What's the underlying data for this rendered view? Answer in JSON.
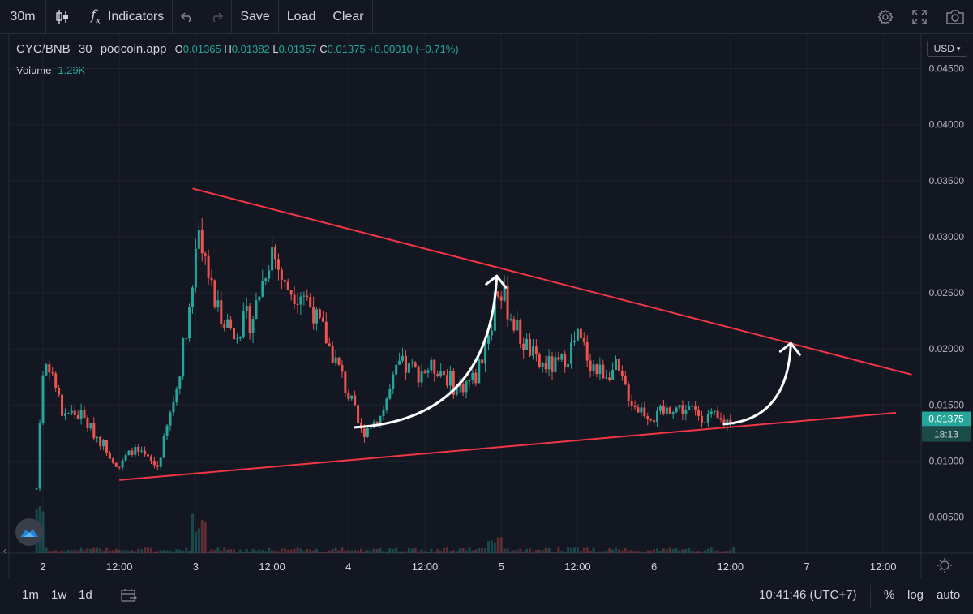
{
  "toolbar": {
    "interval": "30m",
    "indicators_label": "Indicators",
    "save_label": "Save",
    "load_label": "Load",
    "clear_label": "Clear"
  },
  "legend": {
    "symbol": "CYC/BNB",
    "interval": "30",
    "source": "poocoin.app",
    "open_key": "O",
    "open": "0.01365",
    "high_key": "H",
    "high": "0.01382",
    "low_key": "L",
    "low": "0.01357",
    "close_key": "C",
    "close": "0.01375",
    "change": "+0.00010 (+0.71%)",
    "volume_label": "Volume",
    "volume_value": "1.29K"
  },
  "currency": "USD",
  "price_labels": {
    "last_price": "0.01375",
    "countdown": "18:13"
  },
  "bottombar": {
    "ranges": [
      "1m",
      "1w",
      "1d"
    ],
    "time": "10:41:46 (UTC+7)",
    "percent_label": "%",
    "log_label": "log",
    "auto_label": "auto"
  },
  "colors": {
    "background": "#131722",
    "up": "#26a69a",
    "down": "#ef5350",
    "trendline": "#f23645",
    "annotation": "#ffffff",
    "grid": "#1e222d"
  },
  "chart_data": {
    "type": "candlestick",
    "title": "",
    "xlabel": "",
    "ylabel": "",
    "ylim": [
      0.002,
      0.0465
    ],
    "y_ticks": [
      "0.04500",
      "0.04000",
      "0.03500",
      "0.03000",
      "0.02500",
      "0.02000",
      "0.01500",
      "0.01000",
      "0.00500"
    ],
    "y_tick_values": [
      0.045,
      0.04,
      0.035,
      0.03,
      0.025,
      0.02,
      0.015,
      0.01,
      0.005
    ],
    "x_ticks": [
      "2",
      "12:00",
      "3",
      "12:00",
      "4",
      "12:00",
      "5",
      "12:00",
      "6",
      "12:00",
      "7",
      "12:00"
    ],
    "x_tick_hours": [
      0,
      12,
      24,
      36,
      48,
      60,
      72,
      84,
      96,
      108,
      120,
      132
    ],
    "grid": true,
    "price_anchors": [
      {
        "h": -1.0,
        "v": 0.0075
      },
      {
        "h": 0,
        "v": 0.0185
      },
      {
        "h": 1,
        "v": 0.0188
      },
      {
        "h": 3,
        "v": 0.0145
      },
      {
        "h": 6,
        "v": 0.014
      },
      {
        "h": 9,
        "v": 0.0118
      },
      {
        "h": 12,
        "v": 0.0095
      },
      {
        "h": 14,
        "v": 0.011
      },
      {
        "h": 18,
        "v": 0.0095
      },
      {
        "h": 21,
        "v": 0.0165
      },
      {
        "h": 23.5,
        "v": 0.0255
      },
      {
        "h": 24.6,
        "v": 0.0305
      },
      {
        "h": 27,
        "v": 0.024
      },
      {
        "h": 30,
        "v": 0.0215
      },
      {
        "h": 33,
        "v": 0.023
      },
      {
        "h": 36,
        "v": 0.029
      },
      {
        "h": 38,
        "v": 0.0255
      },
      {
        "h": 41,
        "v": 0.025
      },
      {
        "h": 44,
        "v": 0.0215
      },
      {
        "h": 47,
        "v": 0.0175
      },
      {
        "h": 50,
        "v": 0.0125
      },
      {
        "h": 53,
        "v": 0.014
      },
      {
        "h": 56,
        "v": 0.0185
      },
      {
        "h": 59,
        "v": 0.018
      },
      {
        "h": 62,
        "v": 0.0185
      },
      {
        "h": 65,
        "v": 0.0165
      },
      {
        "h": 68,
        "v": 0.0175
      },
      {
        "h": 70.5,
        "v": 0.0225
      },
      {
        "h": 71.2,
        "v": 0.026
      },
      {
        "h": 72.5,
        "v": 0.0245
      },
      {
        "h": 75,
        "v": 0.021
      },
      {
        "h": 78,
        "v": 0.0185
      },
      {
        "h": 81,
        "v": 0.0185
      },
      {
        "h": 84,
        "v": 0.021
      },
      {
        "h": 87,
        "v": 0.018
      },
      {
        "h": 90,
        "v": 0.018
      },
      {
        "h": 93,
        "v": 0.015
      },
      {
        "h": 96,
        "v": 0.0138
      },
      {
        "h": 99,
        "v": 0.0148
      },
      {
        "h": 102,
        "v": 0.0145
      },
      {
        "h": 105,
        "v": 0.0138
      },
      {
        "h": 107,
        "v": 0.0135
      },
      {
        "h": 108.5,
        "v": 0.01375
      }
    ],
    "trendlines": [
      {
        "name": "upper",
        "from": {
          "h": 23.5,
          "v": 0.0343
        },
        "to": {
          "h": 136.5,
          "v": 0.0177
        }
      },
      {
        "name": "lower",
        "from": {
          "h": 12,
          "v": 0.0083
        },
        "to": {
          "h": 134,
          "v": 0.0143
        }
      }
    ],
    "annotations": [
      {
        "kind": "curved-arrow",
        "from": {
          "h": 49,
          "v": 0.013
        },
        "to": {
          "h": 71.3,
          "v": 0.0265
        }
      },
      {
        "kind": "curved-arrow",
        "from": {
          "h": 107,
          "v": 0.0133
        },
        "to": {
          "h": 117.5,
          "v": 0.0205
        }
      }
    ],
    "last_price": 0.01375
  }
}
